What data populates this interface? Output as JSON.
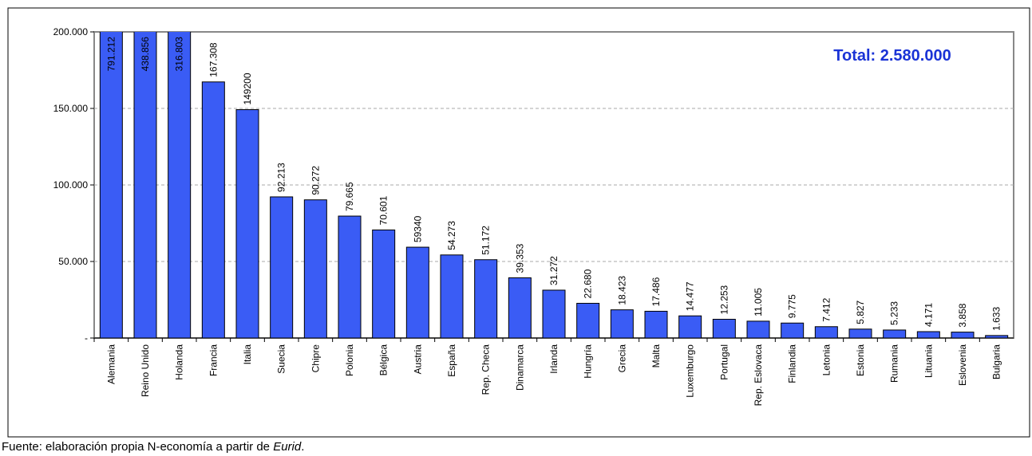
{
  "chart_data": {
    "type": "bar",
    "categories": [
      "Alemania",
      "Reino Unido",
      "Holanda",
      "Francia",
      "Italia",
      "Suecia",
      "Chipre",
      "Polonia",
      "Bélgica",
      "Austria",
      "España",
      "Rep. Checa",
      "Dinamarca",
      "Irlanda",
      "Hungría",
      "Grecia",
      "Malta",
      "Luxemburgo",
      "Portugal",
      "Rep. Eslovaca",
      "Finlandia",
      "Letonia",
      "Estonia",
      "Rumania",
      "Lituania",
      "Eslovenia",
      "Bulgaria"
    ],
    "values": [
      791212,
      438856,
      316803,
      167308,
      149200,
      92213,
      90272,
      79665,
      70601,
      59340,
      54273,
      51172,
      39353,
      31272,
      22680,
      18423,
      17486,
      14477,
      12253,
      11005,
      9775,
      7412,
      5827,
      5233,
      4171,
      3858,
      1633
    ],
    "value_labels": [
      "791.212",
      "438.856",
      "316.803",
      "167.308",
      "149200",
      "92.213",
      "90.272",
      "79.665",
      "70.601",
      "59340",
      "54.273",
      "51.172",
      "39.353",
      "31.272",
      "22.680",
      "18.423",
      "17.486",
      "14.477",
      "12.253",
      "11.005",
      "9.775",
      "7.412",
      "5.827",
      "5.233",
      "4.171",
      "3.858",
      "1.633"
    ],
    "color": "#3a5cf5",
    "ylim": [
      0,
      200000
    ],
    "yticks": [
      {
        "value": 0,
        "label": "-"
      },
      {
        "value": 50000,
        "label": "50.000"
      },
      {
        "value": 100000,
        "label": "100.000"
      },
      {
        "value": 150000,
        "label": "150.000"
      },
      {
        "value": 200000,
        "label": "200.000"
      }
    ],
    "grid": true,
    "annotation": "Total: 2.580.000"
  },
  "footer": {
    "text": "Fuente: elaboración propia N-economía a partir de",
    "source": "Eurid",
    "end": "."
  }
}
